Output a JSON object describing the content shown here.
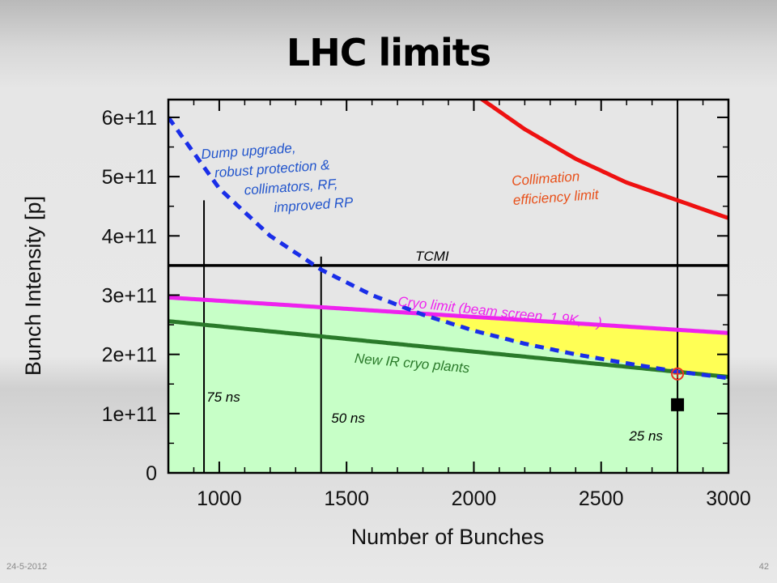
{
  "slide": {
    "title": "LHC limits",
    "date": "24-5-2012",
    "page": "42"
  },
  "chart_data": {
    "type": "line",
    "xlabel": "Number of Bunches",
    "ylabel": "Bunch Intensity [p]",
    "xlim": [
      800,
      3000
    ],
    "ylim": [
      0,
      630000000000.0
    ],
    "x_ticks": [
      1000,
      1500,
      2000,
      2500,
      3000
    ],
    "y_ticks": [
      {
        "value": 0,
        "label": "0"
      },
      {
        "value": 100000000000.0,
        "label": "1e+11"
      },
      {
        "value": 200000000000.0,
        "label": "2e+11"
      },
      {
        "value": 300000000000.0,
        "label": "3e+11"
      },
      {
        "value": 400000000000.0,
        "label": "4e+11"
      },
      {
        "value": 500000000000.0,
        "label": "5e+11"
      },
      {
        "value": 600000000000.0,
        "label": "6e+11"
      }
    ],
    "series": [
      {
        "key": "collimation",
        "color": "#ee1111",
        "style": "solid",
        "x": [
          2000,
          2200,
          2400,
          2600,
          2800,
          3000
        ],
        "y": [
          640000000000.0,
          580000000000.0,
          530000000000.0,
          490000000000.0,
          460000000000.0,
          430000000000.0
        ]
      },
      {
        "key": "tcmi",
        "color": "#000000",
        "style": "solid",
        "x": [
          800,
          3000
        ],
        "y": [
          350000000000.0,
          350000000000.0
        ]
      },
      {
        "key": "cryo",
        "color": "#ee22ee",
        "style": "solid",
        "x": [
          800,
          3000
        ],
        "y": [
          296000000000.0,
          236000000000.0
        ]
      },
      {
        "key": "new_ir",
        "color": "#2a7a2a",
        "style": "solid",
        "x": [
          800,
          3000
        ],
        "y": [
          256000000000.0,
          162000000000.0
        ]
      },
      {
        "key": "dump",
        "color": "#1a2ee8",
        "style": "dashed",
        "x": [
          800,
          1000,
          1200,
          1400,
          1600,
          1800,
          2000,
          2200,
          2400,
          2600,
          2800,
          3000
        ],
        "y": [
          600000000000.0,
          480000000000.0,
          400000000000.0,
          343000000000.0,
          300000000000.0,
          267000000000.0,
          240000000000.0,
          218000000000.0,
          200000000000.0,
          185000000000.0,
          171000000000.0,
          160000000000.0
        ]
      }
    ],
    "verticals": [
      {
        "x": 940,
        "y_top": 460000000000.0,
        "label": "75 ns",
        "label_x": 950,
        "label_y": 120000000000.0
      },
      {
        "x": 1400,
        "y_top": 365000000000.0,
        "label": "50 ns",
        "label_x": 1440,
        "label_y": 85000000000.0
      },
      {
        "x": 2800,
        "y_top": 630000000000.0,
        "label": "25 ns",
        "label_x": 2610,
        "label_y": 55000000000.0
      }
    ],
    "markers": [
      {
        "type": "square",
        "x": 2800,
        "y": 115000000000.0,
        "color": "#000000"
      },
      {
        "type": "circle",
        "x": 2800,
        "y": 167000000000.0,
        "color": "#ee3322"
      }
    ],
    "annotations": [
      {
        "lines": [
          "Dump upgrade,",
          "robust protection &",
          "collimators, RF,",
          "improved RP"
        ],
        "color": "#2255cc"
      },
      {
        "lines": [
          "Collimation",
          "efficiency limit"
        ],
        "color": "#e8501a"
      },
      {
        "lines": [
          "TCMI"
        ],
        "color": "#000000"
      },
      {
        "lines": [
          "Cryo limit (beam screen, 1.9K, ...)"
        ],
        "color": "#ee22ee"
      },
      {
        "lines": [
          "New IR cryo plants"
        ],
        "color": "#2a7a2a"
      }
    ],
    "fills": [
      {
        "region": "below new_ir / dump",
        "color": "#c7ffc7"
      },
      {
        "region": "between cryo and max(new_ir, dump)",
        "color": "#ffff55"
      }
    ],
    "grid": false
  }
}
